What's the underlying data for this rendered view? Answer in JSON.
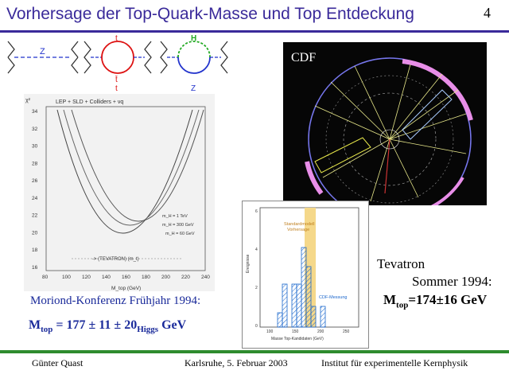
{
  "slide": {
    "title": "Vorhersage der Top-Quark-Masse und Top Entdeckung",
    "page_number": "4"
  },
  "feynman": {
    "z_left": "Z",
    "top_t": "t",
    "top_tbar": "t̄",
    "higgs_h": "H",
    "higgs_z": "Z"
  },
  "chi2_plot": {
    "header": "LEP + SLD + Colliders + νq",
    "ylabel": "χ²",
    "xlabel": "M_top (GeV)",
    "yticks": [
      "34",
      "32",
      "30",
      "28",
      "26",
      "24",
      "22",
      "20",
      "18",
      "16"
    ],
    "xticks": [
      "80",
      "100",
      "120",
      "140",
      "160",
      "180",
      "200",
      "220",
      "240"
    ],
    "curve_labels": [
      "m_H = 1 TeV",
      "m_H = 300 GeV",
      "m_H = 60 GeV"
    ],
    "band_label": "-> (TEVATRON) (m_t)"
  },
  "event_display": {
    "label": "CDF"
  },
  "histogram": {
    "band_label_1": "Standardmodell",
    "band_label_2": "Vorhersage",
    "legend": "CDF-Messung",
    "xlabel": "Masse Top-Kandidaten (GeV)",
    "ylabel": "Ereignisse",
    "xticks": [
      "100",
      "150",
      "200",
      "250"
    ],
    "yticks": [
      "0",
      "2",
      "4",
      "6"
    ]
  },
  "left_caption": {
    "conference": "Moriond-Konferenz Frühjahr 1994:",
    "mtop_prefix": "M",
    "mtop_sub": "top",
    "mtop_mid": " = 177 ± 11 ± 20",
    "mtop_higgs": "Higgs",
    "mtop_unit": " GeV"
  },
  "tevatron": {
    "line1": "Tevatron",
    "line2": "Sommer 1994:",
    "m_prefix": "M",
    "m_sub": "top",
    "m_value": "=174±16 GeV"
  },
  "footer": {
    "author": "Günter Quast",
    "place_date": "Karlsruhe,  5. Februar 2003",
    "institute": "Institut für experimentelle Kernphysik"
  },
  "colors": {
    "title": "#3a2a9a",
    "caption": "#1a2a9a",
    "footer_rule": "#2e8b2e",
    "top_loop": "#dd1111",
    "higgs": "#22aa22",
    "z_line": "#2233cc",
    "band": "#f5d88a",
    "hist_bar": "#1a66cc"
  }
}
